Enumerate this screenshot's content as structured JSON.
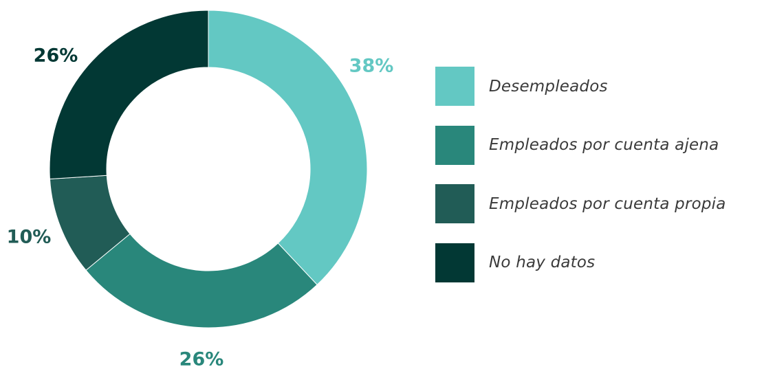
{
  "chart_data": {
    "type": "pie",
    "style": "donut",
    "title": "",
    "slices": [
      {
        "label": "Desempleados",
        "value": 38,
        "display": "38%",
        "color": "#63c8c3"
      },
      {
        "label": "Empleados por cuenta ajena",
        "value": 26,
        "display": "26%",
        "color": "#29877b"
      },
      {
        "label": "Empleados por cuenta propia",
        "value": 10,
        "display": "10%",
        "color": "#215c56"
      },
      {
        "label": "No hay datos",
        "value": 26,
        "display": "26%",
        "color": "#023834"
      }
    ],
    "legend_position": "right"
  }
}
